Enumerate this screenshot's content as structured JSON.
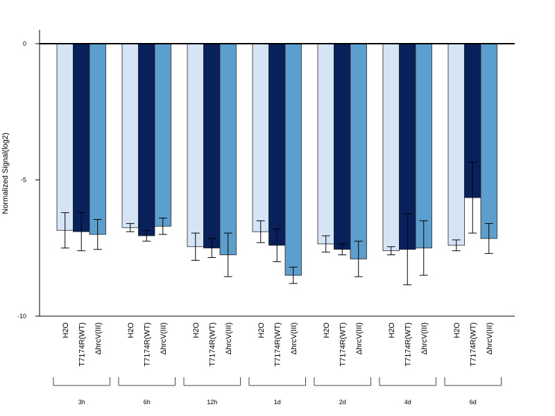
{
  "chart_data": {
    "type": "bar",
    "ylabel": "Normalized Signal(log2)",
    "ylim": [
      -10,
      0.5
    ],
    "yticks": [
      0,
      -5,
      -10
    ],
    "groups": [
      "3h",
      "6h",
      "12h",
      "1d",
      "2d",
      "4d",
      "6d"
    ],
    "conditions": [
      "H2O",
      "T7174R(WT)",
      "ΔhrcV(III)"
    ],
    "series": [
      {
        "color": "#d6e5f5",
        "values": [
          -6.85,
          -6.75,
          -7.45,
          -6.9,
          -7.35,
          -7.6,
          -7.4
        ],
        "errors": [
          0.65,
          0.15,
          0.5,
          0.4,
          0.3,
          0.15,
          0.2
        ]
      },
      {
        "color": "#08215a",
        "values": [
          -6.9,
          -7.05,
          -7.5,
          -7.4,
          -7.55,
          -7.55,
          -5.65
        ],
        "errors": [
          0.7,
          0.2,
          0.35,
          0.6,
          0.2,
          1.3,
          1.3
        ]
      },
      {
        "color": "#5a9fcd",
        "values": [
          -7.0,
          -6.7,
          -7.75,
          -8.5,
          -7.9,
          -7.5,
          -7.15
        ],
        "errors": [
          0.55,
          0.3,
          0.8,
          0.3,
          0.65,
          1.0,
          0.55
        ]
      }
    ]
  }
}
